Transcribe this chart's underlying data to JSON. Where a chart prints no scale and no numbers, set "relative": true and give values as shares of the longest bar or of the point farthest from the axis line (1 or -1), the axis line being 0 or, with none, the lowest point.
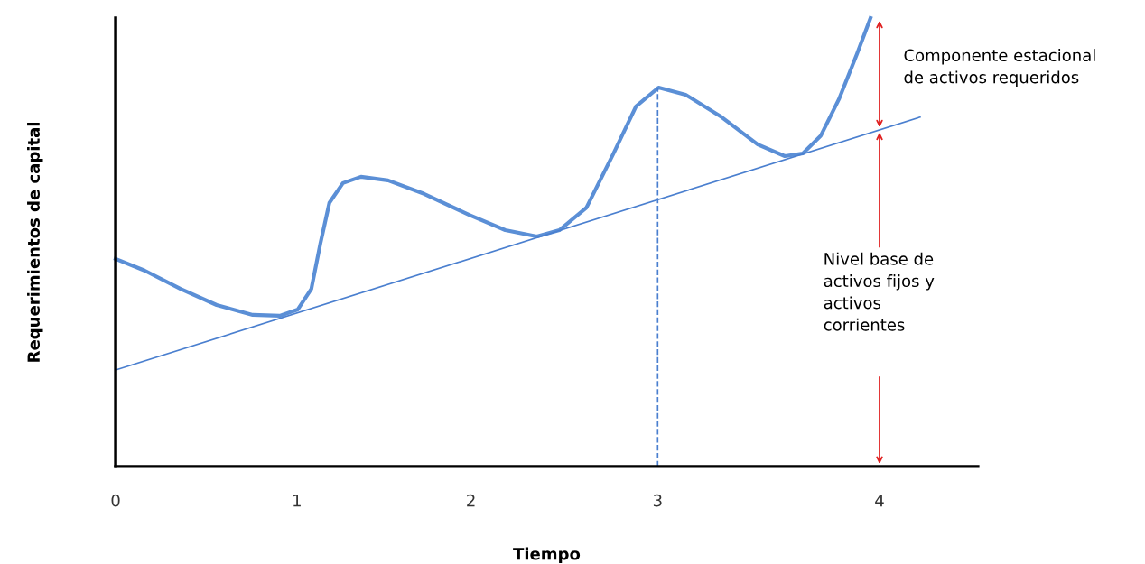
{
  "chart_data": {
    "type": "line",
    "relative": true,
    "xlabel": "Tiempo",
    "ylabel": "Requerimientos de capital",
    "xlim": [
      0,
      4.78
    ],
    "xticks": [
      0,
      {
        "value": 1.005,
        "label": "1"
      },
      {
        "value": 1.97,
        "label": "2"
      },
      {
        "value": 3.005,
        "label": "3"
      },
      {
        "value": 4.235,
        "label": "4"
      }
    ],
    "series": [
      {
        "color": "#5b8fd6",
        "x": [
          0,
          0.16,
          0.36,
          0.56,
          0.76,
          0.91,
          1.01,
          1.085,
          1.135,
          1.185,
          1.26,
          1.36,
          1.51,
          1.71,
          1.96,
          2.16,
          2.335,
          2.46,
          2.61,
          2.76,
          2.885,
          3.01,
          3.16,
          3.36,
          3.56,
          3.71,
          3.81,
          3.91,
          4.01,
          4.11,
          4.185
        ],
        "values": [
          0.463,
          0.437,
          0.396,
          0.36,
          0.338,
          0.336,
          0.35,
          0.396,
          0.497,
          0.588,
          0.632,
          0.646,
          0.638,
          0.608,
          0.561,
          0.527,
          0.513,
          0.527,
          0.577,
          0.698,
          0.803,
          0.845,
          0.829,
          0.779,
          0.718,
          0.692,
          0.698,
          0.738,
          0.819,
          0.92,
          1.0
        ]
      },
      {
        "color": "#4a7fcf",
        "x": [
          0,
          4.46
        ],
        "values": [
          0.215,
          0.779
        ]
      }
    ],
    "ref_lines": [
      {
        "axis": "x",
        "value": 3.005,
        "color": "#4a7fcf",
        "line_style": "dashed"
      }
    ],
    "annotations": [
      "Componente estacional\nde activos requeridos",
      "Nivel base de\nactivos fijos y\nactivos\ncorrientes"
    ]
  }
}
